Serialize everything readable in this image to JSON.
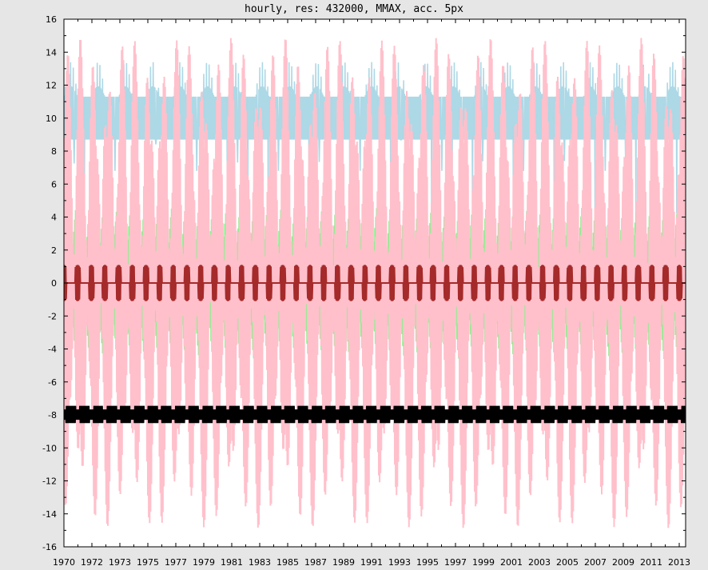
{
  "chart_data": {
    "type": "line",
    "title": "hourly, res: 432000, MMAX, acc. 5px",
    "xlabel": "",
    "ylabel": "",
    "xlim": [
      1970.0,
      2013.6
    ],
    "ylim": [
      -16,
      16
    ],
    "y_ticks": [
      "-16",
      "-14",
      "-12",
      "-10",
      "-8",
      "-6",
      "-4",
      "-2",
      "0",
      "2",
      "4",
      "6",
      "8",
      "10",
      "12",
      "14",
      "16"
    ],
    "x_ticks": [
      "1970",
      "1972",
      "1973",
      "1975",
      "1977",
      "1979",
      "1981",
      "1983",
      "1985",
      "1987",
      "1989",
      "1991",
      "1993",
      "1995",
      "1997",
      "1999",
      "2001",
      "2003",
      "2005",
      "2007",
      "2009",
      "2011",
      "2013"
    ],
    "grid": false,
    "colors": {
      "background": "#e6e6e6",
      "plot_background": "#ffffff",
      "light_blue": "#add8e6",
      "pink": "#ffc0cb",
      "green": "#90ee90",
      "dark_red": "#a52a2a",
      "black": "#000000"
    },
    "series": [
      {
        "color": "#add8e6",
        "description_values": {
          "period_years": 1.918,
          "base_min": 8.7,
          "base_max": 11.3,
          "peak_max": 13.4
        }
      },
      {
        "color": "#ffc0cb",
        "description_values": {
          "period_years": 1.918,
          "amplitude": 14.9
        }
      },
      {
        "color": "#90ee90",
        "description_values": {
          "period_years": 1.918,
          "amplitude": 5.0
        }
      },
      {
        "color": "#a52a2a",
        "description_values": {
          "period_years": 1.918,
          "amplitude": 1.1
        }
      },
      {
        "color": "#000000",
        "description_values": {
          "period_years": 1.918,
          "center": -8.0,
          "amplitude": 0.55
        }
      }
    ]
  }
}
